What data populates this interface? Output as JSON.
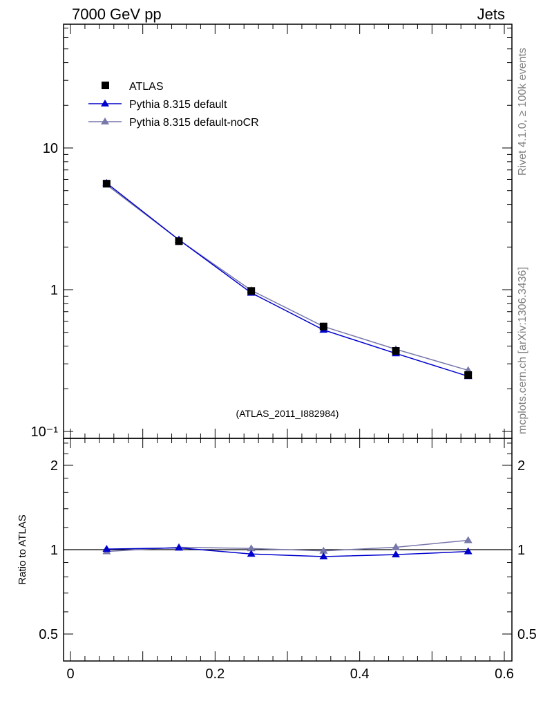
{
  "header": {
    "left_title": "7000 GeV pp",
    "right_title": "Jets"
  },
  "side_labels": {
    "rivet": "Rivet 4.1.0, ≥ 100k events",
    "mcplots": "mcplots.cern.ch [arXiv:1306.3436]"
  },
  "watermark": "(ATLAS_2011_I882984)",
  "colors": {
    "atlas": "#000000",
    "pythia_default": "#0000cc",
    "pythia_nocr": "#7777aa",
    "watermark": "#a0a0a0"
  },
  "chart_data": [
    {
      "type": "line",
      "panel": "main",
      "yscale": "log",
      "xlim": [
        0,
        0.6
      ],
      "ylim": [
        0.1,
        80
      ],
      "ytick_labels": [
        "10⁻¹",
        "1",
        "10"
      ],
      "ytick_values": [
        0.1,
        1,
        10
      ],
      "x": [
        0.05,
        0.15,
        0.25,
        0.35,
        0.45,
        0.55
      ],
      "series": [
        {
          "name": "ATLAS",
          "marker": "square",
          "values": [
            5.6,
            2.2,
            0.98,
            0.55,
            0.37,
            0.25
          ]
        },
        {
          "name": "Pythia 8.315 default",
          "marker": "triangle",
          "values": [
            5.65,
            2.25,
            0.95,
            0.52,
            0.355,
            0.245
          ]
        },
        {
          "name": "Pythia 8.315 default-noCR",
          "marker": "triangle",
          "values": [
            5.5,
            2.25,
            0.99,
            0.55,
            0.38,
            0.27
          ]
        }
      ],
      "legend": [
        "ATLAS",
        "Pythia 8.315 default",
        "Pythia 8.315 default-noCR"
      ],
      "legend_position": "top-left"
    },
    {
      "type": "line",
      "panel": "ratio",
      "ylabel": "Ratio to ATLAS",
      "yscale": "log",
      "xlim": [
        0,
        0.6
      ],
      "ylim": [
        0.4,
        2.4
      ],
      "reference": 1,
      "ytick_labels": [
        "0.5",
        "1",
        "2"
      ],
      "ytick_values": [
        0.5,
        1,
        2
      ],
      "xtick_labels": [
        "0",
        "0.2",
        "0.4",
        "0.6"
      ],
      "xtick_values": [
        0,
        0.2,
        0.4,
        0.6
      ],
      "x": [
        0.05,
        0.15,
        0.25,
        0.35,
        0.45,
        0.55
      ],
      "series": [
        {
          "name": "Pythia 8.315 default",
          "values": [
            1.005,
            1.015,
            0.965,
            0.945,
            0.96,
            0.985
          ]
        },
        {
          "name": "Pythia 8.315 default-noCR",
          "values": [
            0.985,
            1.02,
            1.01,
            0.99,
            1.02,
            1.08
          ]
        }
      ]
    }
  ]
}
